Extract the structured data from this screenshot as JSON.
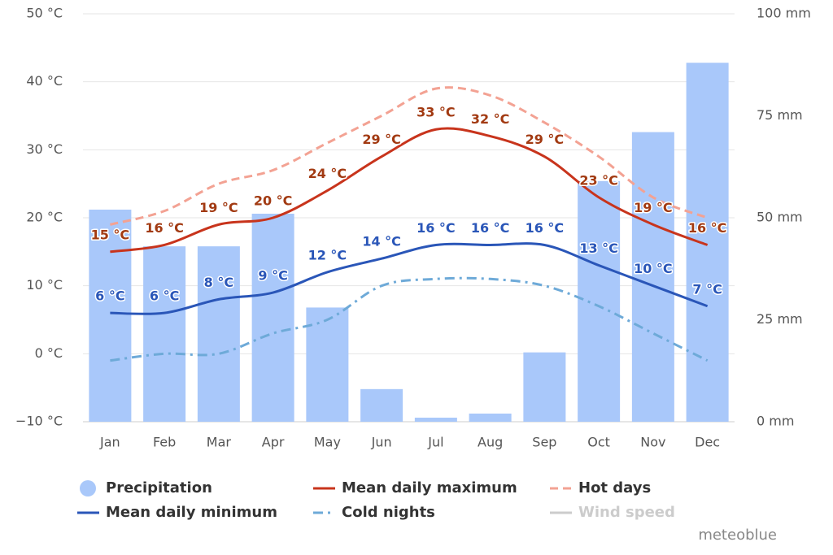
{
  "chart_data": {
    "type": "combo",
    "categories": [
      "Jan",
      "Feb",
      "Mar",
      "Apr",
      "May",
      "Jun",
      "Jul",
      "Aug",
      "Sep",
      "Oct",
      "Nov",
      "Dec"
    ],
    "ylim": [
      -10,
      50
    ],
    "yticks": [
      {
        "value": -10,
        "label": "−10 °C"
      },
      {
        "value": 0,
        "label": "0 °C"
      },
      {
        "value": 10,
        "label": "10 °C"
      },
      {
        "value": 20,
        "label": "20 °C"
      },
      {
        "value": 30,
        "label": "30 °C"
      },
      {
        "value": 40,
        "label": "40 °C"
      },
      {
        "value": 50,
        "label": "50 °C"
      }
    ],
    "y2lim": [
      0,
      100
    ],
    "y2ticks": [
      {
        "value": 0,
        "label": "0 mm"
      },
      {
        "value": 25,
        "label": "25 mm"
      },
      {
        "value": 50,
        "label": "50 mm"
      },
      {
        "value": 75,
        "label": "75 mm"
      },
      {
        "value": 100,
        "label": "100 mm"
      }
    ],
    "grid": true,
    "series": [
      {
        "name": "Precipitation",
        "type": "bar",
        "axis": "y2",
        "color": "#a9c8fa",
        "values": [
          52,
          43,
          43,
          51,
          28,
          8,
          1,
          2,
          17,
          59,
          71,
          88
        ]
      },
      {
        "name": "Mean daily maximum",
        "type": "line",
        "color": "#c8341c",
        "label_color": "#a23a12",
        "values": [
          15,
          16,
          19,
          20,
          24,
          29,
          33,
          32,
          29,
          23,
          19,
          16
        ],
        "value_labels": [
          "15 °C",
          "16 °C",
          "19 °C",
          "20 °C",
          "24 °C",
          "29 °C",
          "33 °C",
          "32 °C",
          "29 °C",
          "23 °C",
          "19 °C",
          "16 °C"
        ]
      },
      {
        "name": "Hot days",
        "type": "line",
        "dash": "10,6",
        "color": "#f3a293",
        "values": [
          19,
          21,
          25,
          27,
          31,
          35,
          39,
          38,
          34,
          29,
          23,
          20
        ]
      },
      {
        "name": "Mean daily minimum",
        "type": "line",
        "color": "#2a56b8",
        "label_color": "#2a56b8",
        "values": [
          6,
          6,
          8,
          9,
          12,
          14,
          16,
          16,
          16,
          13,
          10,
          7
        ],
        "value_labels": [
          "6 °C",
          "6 °C",
          "8 °C",
          "9 °C",
          "12 °C",
          "14 °C",
          "16 °C",
          "16 °C",
          "16 °C",
          "13 °C",
          "10 °C",
          "7 °C"
        ]
      },
      {
        "name": "Cold nights",
        "type": "line",
        "dash": "12,6,3,6",
        "color": "#6eaad8",
        "values": [
          -1,
          0,
          0,
          3,
          5,
          10,
          11,
          11,
          10,
          7,
          3,
          -1
        ]
      },
      {
        "name": "Wind speed",
        "type": "line",
        "visible": false,
        "color": "#cccccc"
      }
    ],
    "watermark": "meteoblue"
  }
}
